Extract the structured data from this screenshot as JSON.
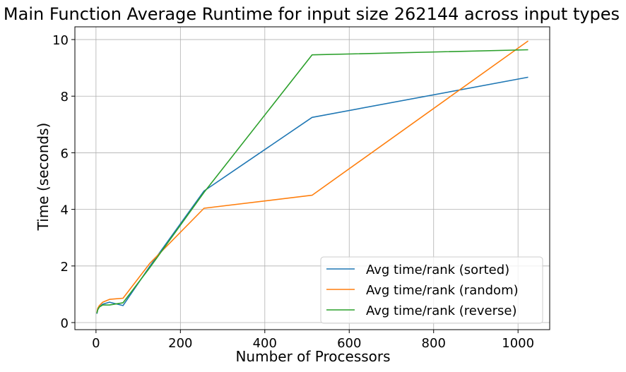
{
  "chart_data": {
    "type": "line",
    "title": "Main Function Average Runtime for input size 262144 across input types",
    "xlabel": "Number of Processors",
    "ylabel": "Time (seconds)",
    "x": [
      2,
      4,
      8,
      16,
      32,
      64,
      128,
      256,
      512,
      1024
    ],
    "xlim": [
      -50,
      1075
    ],
    "ylim": [
      -0.25,
      10.45
    ],
    "xticks": [
      0,
      200,
      400,
      600,
      800,
      1000
    ],
    "yticks": [
      0,
      2,
      4,
      6,
      8,
      10
    ],
    "grid": true,
    "legend_position": "lower-right",
    "series": [
      {
        "name": "Avg time/rank (sorted)",
        "color": "#1f77b4",
        "values": [
          0.31,
          0.45,
          0.55,
          0.65,
          0.72,
          0.6,
          2.0,
          4.65,
          7.25,
          8.67
        ]
      },
      {
        "name": "Avg time/rank (random)",
        "color": "#ff7f0e",
        "values": [
          0.34,
          0.5,
          0.6,
          0.72,
          0.82,
          0.86,
          2.1,
          4.04,
          4.5,
          9.95
        ]
      },
      {
        "name": "Avg time/rank (reverse)",
        "color": "#2ca02c",
        "values": [
          0.33,
          0.45,
          0.55,
          0.62,
          0.62,
          0.7,
          1.95,
          4.6,
          9.46,
          9.64
        ]
      }
    ]
  }
}
